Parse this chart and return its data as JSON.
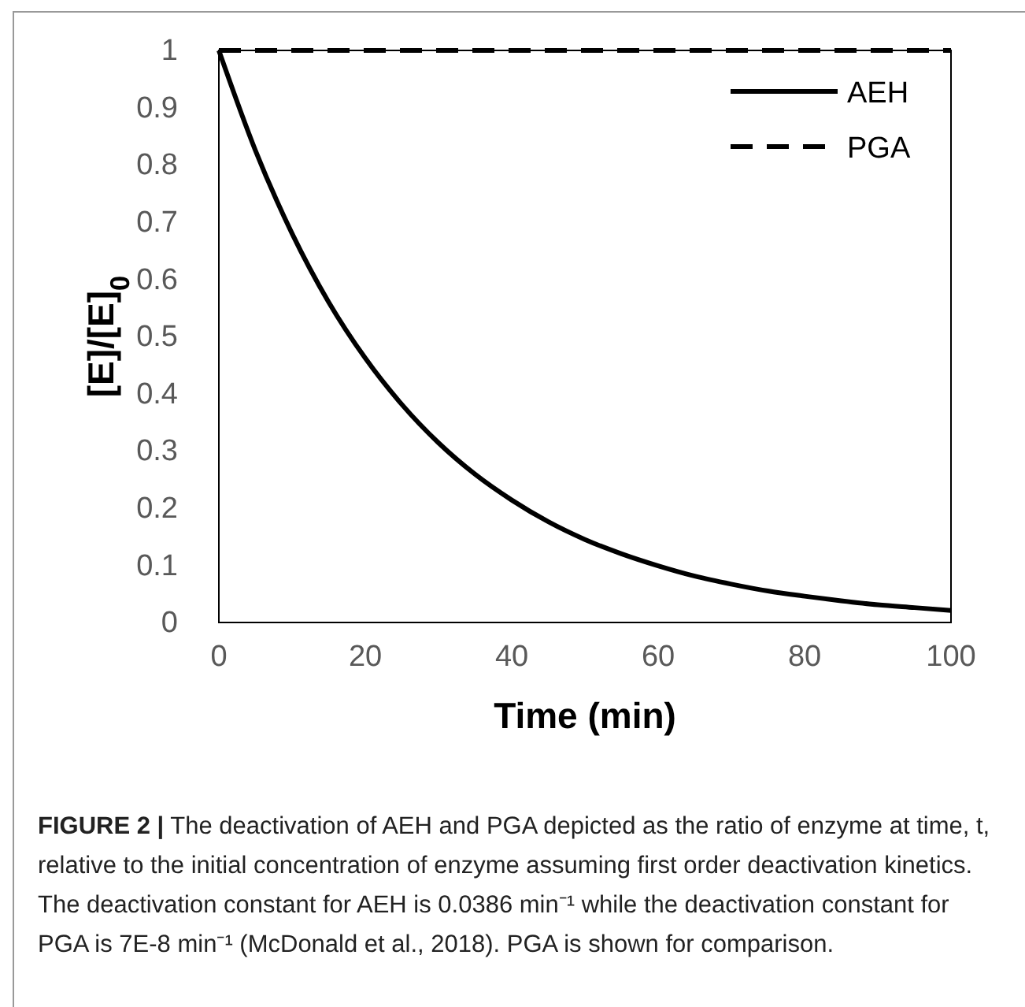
{
  "chart_data": {
    "type": "line",
    "xlabel": "Time (min)",
    "ylabel": "[E]/[E]$_{0}$",
    "x": [
      0,
      5,
      10,
      15,
      20,
      25,
      30,
      35,
      40,
      45,
      50,
      55,
      60,
      65,
      70,
      75,
      80,
      85,
      90,
      95,
      100
    ],
    "series": [
      {
        "name": "AEH",
        "color": "#000000",
        "line_style": "solid",
        "values": [
          1,
          0.825,
          0.68,
          0.56,
          0.462,
          0.381,
          0.314,
          0.259,
          0.214,
          0.176,
          0.145,
          0.12,
          0.099,
          0.081,
          0.067,
          0.055,
          0.046,
          0.038,
          0.031,
          0.026,
          0.021
        ]
      },
      {
        "name": "PGA",
        "color": "#000000",
        "line_style": "dashed",
        "x": [
          0,
          100
        ],
        "values": [
          1,
          1
        ]
      }
    ],
    "xlim": [
      0,
      100
    ],
    "xticks": [
      0,
      20,
      40,
      60,
      80,
      100
    ],
    "ylim": [
      0,
      1
    ],
    "yticks": [
      0,
      0.1,
      0.2,
      0.3,
      0.4,
      0.5,
      0.6,
      0.7,
      0.8,
      0.9,
      1
    ],
    "grid": false,
    "legend": "top right",
    "marker": "none",
    "annotations": [
      "FIGURE 2 |",
      "The deactivation of AEH and PGA depicted as the ratio of enzyme at time, t, relative to the initial concentration of enzyme assuming first order deactivation kinetics. The deactivation constant for AEH is 0.0386 min⁻¹ while the deactivation constant for PGA is 7E-8 min⁻¹ (McDonald et al., 2018). PGA is shown for comparison."
    ]
  }
}
